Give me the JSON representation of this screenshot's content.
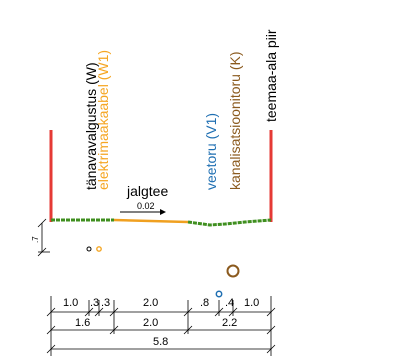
{
  "labels": {
    "street_lighting": "tänavavalgustus (W)",
    "power_cable": "elektrimaakaabel (W1)",
    "water_pipe": "veetoru (V1)",
    "sewer_pipe": "kanalisatsioonitoru (K)",
    "road_boundary": "teemaa-ala piir",
    "footpath": "jalgtee",
    "slope": "0.02",
    "left_height": ".7"
  },
  "dimensions": {
    "row1": [
      "1.0",
      ".3",
      ".3",
      "2.0",
      ".8",
      ".4",
      "1.0"
    ],
    "row2": [
      "1.6",
      "2.0",
      "2.2"
    ],
    "row3": [
      "5.8"
    ]
  },
  "colors": {
    "boundary": "#e53935",
    "grass": "#3f8f1f",
    "path": "#f0a020",
    "power": "#f5a623",
    "water": "#1f6fb2",
    "sewer": "#8b5a1e",
    "light": "#000000"
  }
}
